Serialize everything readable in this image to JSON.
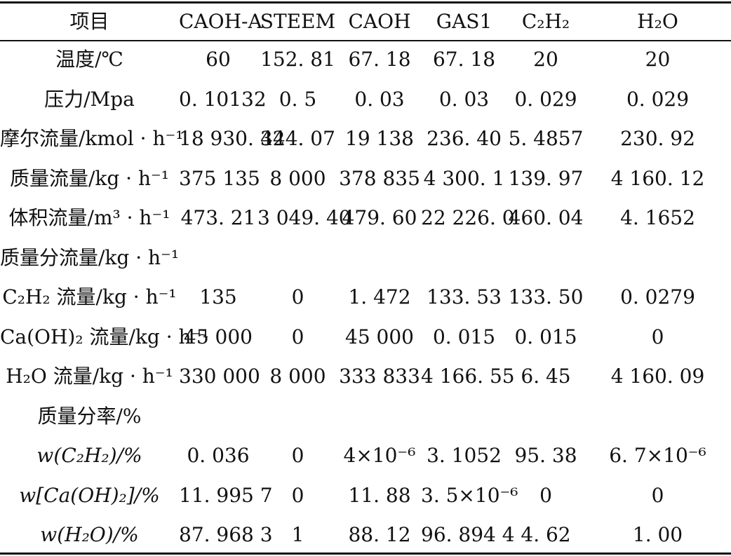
{
  "columns": [
    "项目",
    "CAOH-A",
    "STEEM",
    "CAOH",
    "GAS1",
    "C₂H₂",
    "H₂O"
  ],
  "rows": [
    {
      "label": "温度/℃",
      "values": [
        "60",
        "152. 81",
        "67. 18",
        "67. 18",
        "20",
        "20"
      ]
    },
    {
      "label": "压力/Mpa",
      "values": [
        "0. 10132",
        "0. 5",
        "0. 03",
        "0. 03",
        "0. 029",
        "0. 029"
      ]
    },
    {
      "label": "摩尔流量/kmol · h⁻¹",
      "values": [
        "18 930. 32",
        "444. 07",
        "19 138",
        "236. 40",
        "5. 4857",
        "230. 92"
      ]
    },
    {
      "label": "质量流量/kg · h⁻¹",
      "values": [
        "375 135",
        "8 000",
        "378 835",
        "4 300. 1",
        "139. 97",
        "4 160. 12"
      ]
    },
    {
      "label": "体积流量/m³ · h⁻¹",
      "values": [
        "473. 21",
        "3 049. 40",
        "479. 60",
        "22 226. 0",
        "460. 04",
        "4. 1652"
      ]
    },
    {
      "label": "质量分流量/kg · h⁻¹",
      "values": [
        "",
        "",
        "",
        "",
        "",
        ""
      ]
    },
    {
      "label": "C₂H₂ 流量/kg · h⁻¹",
      "values": [
        "135",
        "0",
        "1. 472",
        "133. 53",
        "133. 50",
        "0. 0279"
      ]
    },
    {
      "label": "Ca(OH)₂ 流量/kg · h⁻¹",
      "values": [
        "45 000",
        "0",
        "45 000",
        "0. 015",
        "0. 015",
        "0"
      ]
    },
    {
      "label": "H₂O 流量/kg · h⁻¹",
      "values": [
        "330 000",
        "8 000",
        "333 833",
        "4 166. 55",
        "6. 45",
        "4 160. 09"
      ]
    },
    {
      "label": "质量分率/%",
      "values": [
        "",
        "",
        "",
        "",
        "",
        ""
      ]
    },
    {
      "label": "w(C₂H₂)/%",
      "values": [
        "0. 036",
        "0",
        "4×10⁻⁶",
        "3. 1052",
        "95. 38",
        "6. 7×10⁻⁶"
      ]
    },
    {
      "label": "w[Ca(OH)₂]/%",
      "values": [
        "11. 995 7",
        "0",
        "11. 88",
        "3. 5×10⁻⁶",
        "0",
        "0"
      ]
    },
    {
      "label": "w(H₂O)/%",
      "values": [
        "87. 968 3",
        "1",
        "88. 12",
        "96. 894 4",
        "4. 62",
        "1. 00"
      ]
    }
  ]
}
